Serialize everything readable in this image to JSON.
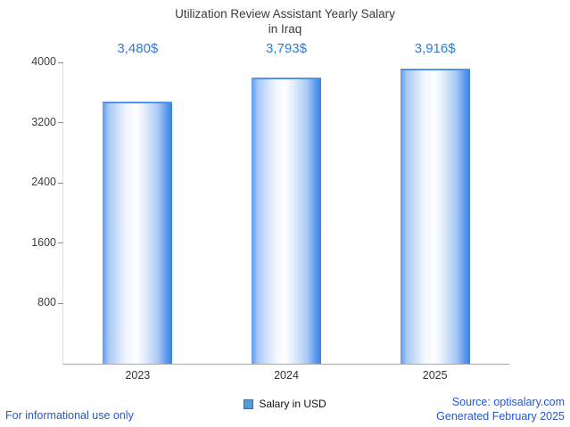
{
  "title": {
    "line1": "Utilization Review Assistant Yearly Salary",
    "line2": "in Iraq"
  },
  "chart_data": {
    "type": "bar",
    "title": "Utilization Review Assistant Yearly Salary in Iraq",
    "categories": [
      "2023",
      "2024",
      "2025"
    ],
    "values": [
      3480,
      3793,
      3916
    ],
    "data_labels": [
      "3,480$",
      "3,793$",
      "3,916$"
    ],
    "series": [
      {
        "name": "Salary in USD",
        "values": [
          3480,
          3793,
          3916
        ]
      }
    ],
    "xlabel": "",
    "ylabel": "",
    "ylim": [
      0,
      4000
    ],
    "yticks": [
      800,
      1600,
      2400,
      3200,
      4000
    ],
    "grid": false,
    "legend_position": "bottom"
  },
  "legend": {
    "label": "Salary in USD",
    "swatch_color": "#5b9bd5"
  },
  "footer": {
    "left_note": "For informational use only",
    "source": "Source: optisalary.com",
    "generated": "Generated February 2025"
  },
  "colors": {
    "value_label_blue": "#2e7cd6",
    "link_blue": "#2457d5",
    "bar_edge_blue": "#4f93ec",
    "axis_gray": "#a8a8a8"
  }
}
